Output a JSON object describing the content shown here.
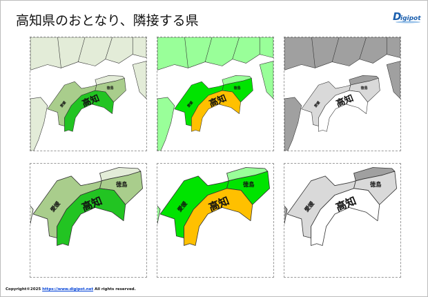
{
  "title": "高知県のおとなり、隣接する県",
  "logo": {
    "text": "Digipot",
    "color": "#1b5fae"
  },
  "labels": {
    "kochi": "高知",
    "ehime": "愛媛",
    "tokushima": "徳島"
  },
  "panels": [
    {
      "id": "top-1",
      "view": "overview",
      "colors": {
        "kochi": "#22c422",
        "neighbor": "#a9cd8c",
        "other": "#e3ecd8"
      }
    },
    {
      "id": "top-2",
      "view": "overview",
      "colors": {
        "kochi": "#ffc000",
        "neighbor": "#00e400",
        "other": "#99ff99"
      }
    },
    {
      "id": "top-3",
      "view": "overview",
      "colors": {
        "kochi": "#ffffff",
        "neighbor": "#d9d9d9",
        "other": "#a0a0a0"
      }
    },
    {
      "id": "bottom-1",
      "view": "zoomed",
      "colors": {
        "kochi": "#22c422",
        "neighbor": "#a9cd8c",
        "other": "#e3ecd8"
      }
    },
    {
      "id": "bottom-2",
      "view": "zoomed",
      "colors": {
        "kochi": "#ffc000",
        "neighbor": "#00e400",
        "other": "#99ff99"
      }
    },
    {
      "id": "bottom-3",
      "view": "zoomed",
      "colors": {
        "kochi": "#ffffff",
        "neighbor": "#d9d9d9",
        "other": "#a0a0a0"
      }
    }
  ],
  "footer": {
    "prefix": "Copyright©2025 ",
    "link": "https://www.digipot.net",
    "suffix": " All rights reserved."
  }
}
